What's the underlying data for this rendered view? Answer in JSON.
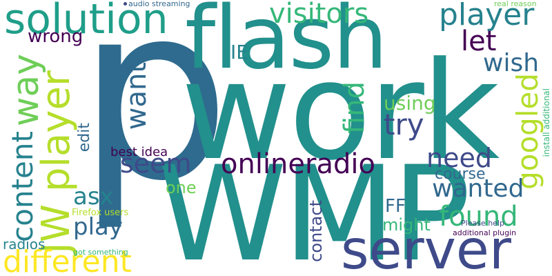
{
  "words": {
    "p": "p",
    "work": "work",
    "wmp": "WMP",
    "flash": "flash",
    "server": "server",
    "solution": "solution",
    "player_top": "player",
    "visitors": "visitors",
    "jw_player": "JW player",
    "way": "way",
    "onlineradio": "onlineradio",
    "googled": "googled",
    "content": "content",
    "different": "different",
    "found": "found",
    "wanted": "wanted",
    "need": "need",
    "seem": "seem",
    "try": "try",
    "want": "want",
    "find": "find",
    "wish": "wish",
    "let": "let",
    "wrong": "wrong",
    "ie": "IE",
    "using": "using",
    "course": "course",
    "asx": "asx",
    "play": "play",
    "one": "one",
    "edit": "edit",
    "best_idea": "best idea",
    "contact": "contact",
    "ff": "FF",
    "might": "might",
    "radios": "radios",
    "firefox_users": "Firefox users",
    "got_something": "got something",
    "audio_streaming": "audio streaming",
    "real_reason": "real reason",
    "install_additional": "install additional",
    "please_help": "Please help",
    "additional_plugin": "additional plugin"
  },
  "colors": {
    "dark_purple": "#440154",
    "indigo": "#3e4a89",
    "blue_teal": "#31688e",
    "teal": "#26828e",
    "green_teal": "#1f9e89",
    "green": "#35b779",
    "light_green": "#6ece58",
    "yellow_green": "#b5de2b",
    "yellow": "#fde725"
  }
}
